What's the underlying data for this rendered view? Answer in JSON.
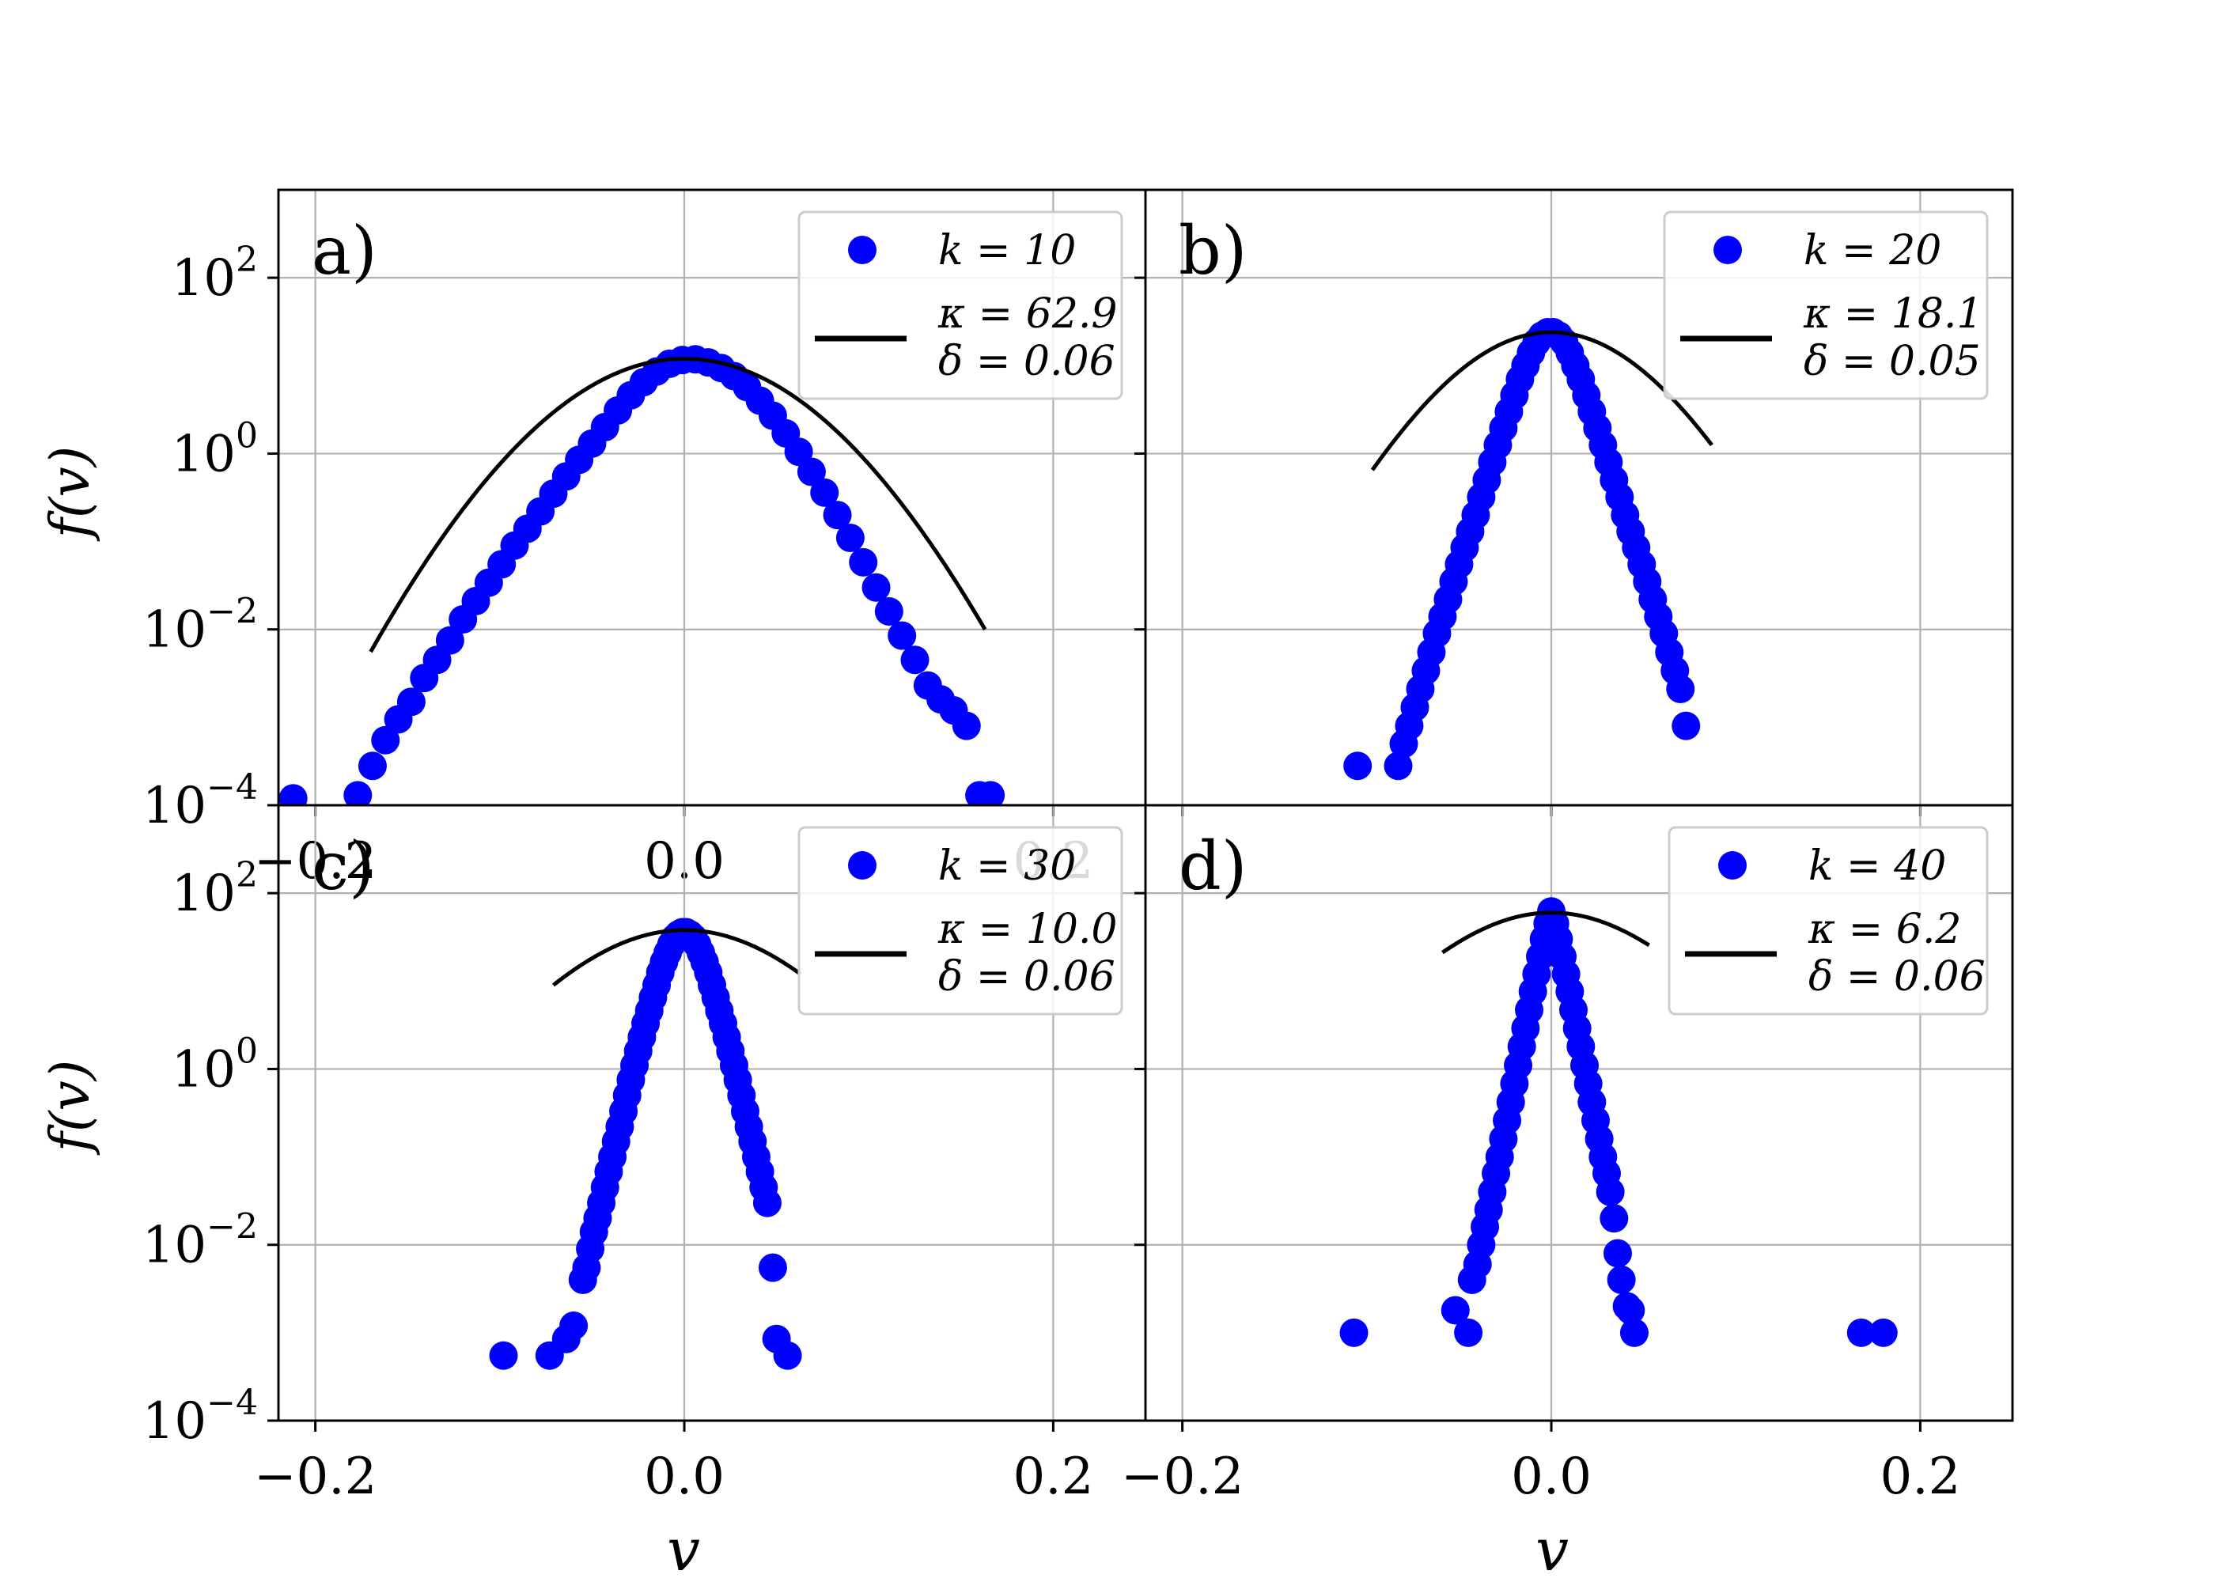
{
  "figure": {
    "xlabel": "v",
    "ylabel": "f(v)",
    "xticks": [
      -0.2,
      0.0,
      0.2
    ],
    "xtick_labels": [
      "−0.2",
      "0.0",
      "0.2"
    ],
    "yticks": [
      -4,
      -2,
      0,
      2
    ],
    "ytick_labels": [
      {
        "base": "10",
        "exp": "−4"
      },
      {
        "base": "10",
        "exp": "−2"
      },
      {
        "base": "10",
        "exp": "0"
      },
      {
        "base": "10",
        "exp": "2"
      }
    ]
  },
  "chart_data": [
    {
      "type": "scatter",
      "panel_label": "a)",
      "xlim": [
        -0.22,
        0.25
      ],
      "ylim": [
        0.0001,
        1000
      ],
      "yscale": "log",
      "grid": true,
      "legend_position": "top-right",
      "marker_color": "#0000ff",
      "series": [
        {
          "name": "k = 10",
          "x": [
            -0.212,
            -0.177,
            -0.169,
            -0.162,
            -0.155,
            -0.148,
            -0.141,
            -0.134,
            -0.127,
            -0.12,
            -0.113,
            -0.106,
            -0.099,
            -0.092,
            -0.085,
            -0.078,
            -0.071,
            -0.064,
            -0.057,
            -0.05,
            -0.043,
            -0.036,
            -0.029,
            -0.022,
            -0.015,
            -0.008,
            -0.001,
            0.006,
            0.013,
            0.02,
            0.027,
            0.034,
            0.041,
            0.048,
            0.055,
            0.062,
            0.069,
            0.076,
            0.083,
            0.09,
            0.097,
            0.104,
            0.111,
            0.118,
            0.125,
            0.132,
            0.139,
            0.146,
            0.153,
            0.16,
            0.166
          ],
          "y": [
            0.00012,
            0.00013,
            0.00028,
            0.00055,
            0.00095,
            0.0015,
            0.0028,
            0.0045,
            0.0075,
            0.013,
            0.021,
            0.034,
            0.055,
            0.09,
            0.14,
            0.22,
            0.35,
            0.55,
            0.85,
            1.3,
            2.0,
            3.1,
            4.6,
            6.5,
            8.6,
            10.5,
            11.6,
            11.8,
            10.9,
            9.4,
            7.6,
            5.7,
            4.0,
            2.7,
            1.7,
            1.05,
            0.62,
            0.36,
            0.2,
            0.11,
            0.058,
            0.03,
            0.016,
            0.0085,
            0.0045,
            0.0023,
            0.0016,
            0.0012,
            0.0008,
            0.00013,
            0.00013
          ]
        },
        {
          "name": "κ = 62.9 / δ = 0.06",
          "kappa": 62.9,
          "delta": 0.06,
          "peak": 12,
          "x_range": [
            -0.17,
            0.163
          ]
        }
      ]
    },
    {
      "type": "scatter",
      "panel_label": "b)",
      "xlim": [
        -0.22,
        0.25
      ],
      "ylim": [
        0.0001,
        1000
      ],
      "yscale": "log",
      "grid": true,
      "legend_position": "top-right",
      "marker_color": "#0000ff",
      "series": [
        {
          "name": "k = 20",
          "x": [
            -0.105,
            -0.083,
            -0.08,
            -0.077,
            -0.074,
            -0.071,
            -0.068,
            -0.065,
            -0.062,
            -0.059,
            -0.056,
            -0.053,
            -0.05,
            -0.047,
            -0.044,
            -0.041,
            -0.038,
            -0.035,
            -0.032,
            -0.029,
            -0.026,
            -0.023,
            -0.02,
            -0.017,
            -0.014,
            -0.011,
            -0.008,
            -0.005,
            -0.002,
            0.001,
            0.004,
            0.007,
            0.01,
            0.013,
            0.016,
            0.019,
            0.022,
            0.025,
            0.028,
            0.031,
            0.034,
            0.037,
            0.04,
            0.043,
            0.046,
            0.049,
            0.052,
            0.055,
            0.058,
            0.061,
            0.064,
            0.067,
            0.07,
            0.073
          ],
          "y": [
            0.00028,
            0.00028,
            0.0005,
            0.0008,
            0.0013,
            0.0021,
            0.0034,
            0.0055,
            0.009,
            0.014,
            0.022,
            0.035,
            0.055,
            0.085,
            0.13,
            0.2,
            0.32,
            0.5,
            0.8,
            1.25,
            1.95,
            3.0,
            4.6,
            7.0,
            10.0,
            14.0,
            18.5,
            22.0,
            24.0,
            24.0,
            22.0,
            18.5,
            14.0,
            10.0,
            7.0,
            4.6,
            3.0,
            1.95,
            1.25,
            0.8,
            0.5,
            0.32,
            0.2,
            0.13,
            0.085,
            0.055,
            0.035,
            0.022,
            0.014,
            0.009,
            0.0055,
            0.0034,
            0.0021,
            0.0008
          ]
        },
        {
          "name": "κ = 18.1 / δ = 0.05",
          "kappa": 18.1,
          "delta": 0.05,
          "peak": 24,
          "x_range": [
            -0.097,
            0.087
          ]
        }
      ]
    },
    {
      "type": "scatter",
      "panel_label": "c)",
      "xlim": [
        -0.22,
        0.25
      ],
      "ylim": [
        0.0001,
        1000
      ],
      "yscale": "log",
      "grid": true,
      "legend_position": "top-right",
      "marker_color": "#0000ff",
      "series": [
        {
          "name": "k = 30",
          "x": [
            -0.098,
            -0.073,
            -0.064,
            -0.06,
            -0.055,
            -0.053,
            -0.051,
            -0.049,
            -0.047,
            -0.045,
            -0.043,
            -0.041,
            -0.039,
            -0.037,
            -0.035,
            -0.033,
            -0.031,
            -0.029,
            -0.027,
            -0.025,
            -0.023,
            -0.021,
            -0.019,
            -0.017,
            -0.015,
            -0.013,
            -0.011,
            -0.009,
            -0.007,
            -0.005,
            -0.003,
            -0.001,
            0.001,
            0.003,
            0.005,
            0.007,
            0.009,
            0.011,
            0.013,
            0.015,
            0.017,
            0.019,
            0.021,
            0.023,
            0.025,
            0.027,
            0.029,
            0.031,
            0.033,
            0.035,
            0.037,
            0.039,
            0.041,
            0.043,
            0.045,
            0.048,
            0.05,
            0.056
          ],
          "y": [
            0.00055,
            0.00055,
            0.00085,
            0.0012,
            0.004,
            0.0055,
            0.009,
            0.014,
            0.02,
            0.03,
            0.045,
            0.068,
            0.1,
            0.15,
            0.22,
            0.33,
            0.5,
            0.75,
            1.1,
            1.6,
            2.3,
            3.3,
            4.6,
            6.5,
            9.0,
            12.5,
            16.5,
            21.0,
            26.0,
            31.0,
            34.0,
            36.0,
            36.0,
            34.0,
            31.0,
            26.0,
            21.0,
            16.5,
            12.5,
            9.0,
            6.5,
            4.6,
            3.3,
            2.3,
            1.6,
            1.1,
            0.75,
            0.5,
            0.33,
            0.22,
            0.15,
            0.1,
            0.068,
            0.045,
            0.03,
            0.0055,
            0.00085,
            0.00055
          ]
        },
        {
          "name": "κ = 10.0 / δ = 0.06",
          "kappa": 10.0,
          "delta": 0.06,
          "peak": 38,
          "x_range": [
            -0.071,
            0.063
          ]
        }
      ]
    },
    {
      "type": "scatter",
      "panel_label": "d)",
      "xlim": [
        -0.22,
        0.25
      ],
      "ylim": [
        0.0001,
        1000
      ],
      "yscale": "log",
      "grid": true,
      "legend_position": "top-right",
      "marker_color": "#0000ff",
      "series": [
        {
          "name": "k = 40",
          "x": [
            -0.107,
            -0.052,
            -0.045,
            -0.043,
            -0.04,
            -0.038,
            -0.036,
            -0.034,
            -0.032,
            -0.03,
            -0.028,
            -0.026,
            -0.024,
            -0.022,
            -0.02,
            -0.018,
            -0.016,
            -0.014,
            -0.012,
            -0.01,
            -0.008,
            -0.006,
            -0.004,
            -0.002,
            0.0,
            0.002,
            0.004,
            0.006,
            0.008,
            0.01,
            0.012,
            0.014,
            0.016,
            0.018,
            0.02,
            0.022,
            0.024,
            0.026,
            0.028,
            0.03,
            0.032,
            0.034,
            0.036,
            0.038,
            0.041,
            0.043,
            0.045,
            0.168,
            0.18
          ],
          "y": [
            0.001,
            0.0018,
            0.001,
            0.004,
            0.006,
            0.01,
            0.016,
            0.025,
            0.04,
            0.065,
            0.1,
            0.16,
            0.26,
            0.42,
            0.68,
            1.1,
            1.8,
            2.9,
            4.7,
            7.6,
            12.0,
            19.0,
            30.0,
            45.0,
            62.0,
            45.0,
            30.0,
            19.0,
            12.0,
            7.6,
            4.7,
            2.9,
            1.8,
            1.1,
            0.68,
            0.42,
            0.26,
            0.16,
            0.1,
            0.065,
            0.04,
            0.02,
            0.008,
            0.004,
            0.002,
            0.0018,
            0.001,
            0.001,
            0.001
          ]
        },
        {
          "name": "κ = 6.2 / δ = 0.06",
          "kappa": 6.2,
          "delta": 0.06,
          "peak": 60,
          "x_range": [
            -0.059,
            0.053
          ]
        }
      ]
    }
  ]
}
